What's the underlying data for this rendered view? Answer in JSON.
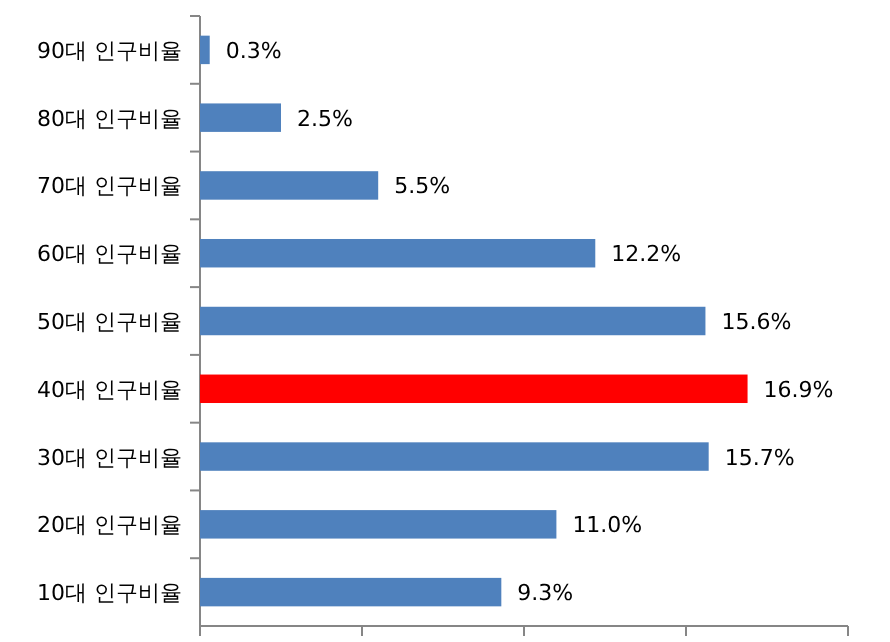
{
  "chart_data": {
    "type": "bar",
    "orientation": "horizontal",
    "categories": [
      "90대 인구비율",
      "80대 인구비율",
      "70대 인구비율",
      "60대 인구비율",
      "50대 인구비율",
      "40대 인구비율",
      "30대 인구비율",
      "20대 인구비율",
      "10대 인구비율"
    ],
    "values": [
      0.3,
      2.5,
      5.5,
      12.2,
      15.6,
      16.9,
      15.7,
      11.0,
      9.3
    ],
    "colors": [
      "#4f81bd",
      "#4f81bd",
      "#4f81bd",
      "#4f81bd",
      "#4f81bd",
      "#ff0000",
      "#4f81bd",
      "#4f81bd",
      "#4f81bd"
    ],
    "value_labels": [
      "0.3%",
      "2.5%",
      "5.5%",
      "12.2%",
      "15.6%",
      "16.9%",
      "15.7%",
      "11.0%",
      "9.3%"
    ],
    "xlim": [
      0,
      20
    ],
    "xticks": [
      {
        "value": 0,
        "label": null
      },
      {
        "value": 5,
        "label": null
      },
      {
        "value": 10,
        "label": null
      },
      {
        "value": 15,
        "label": null
      },
      {
        "value": 20,
        "label": null
      }
    ],
    "tick_labels": "y"
  }
}
